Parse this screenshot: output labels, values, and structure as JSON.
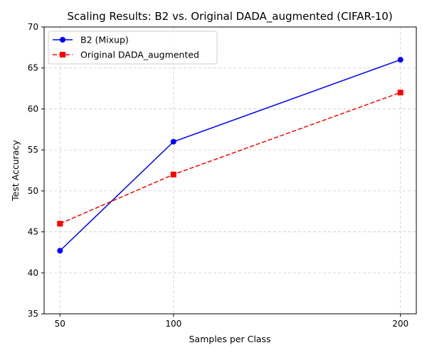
{
  "chart_data": {
    "type": "line",
    "title": "Scaling Results: B2 vs. Original DADA_augmented (CIFAR-10)",
    "xlabel": "Samples per Class",
    "ylabel": "Test Accuracy",
    "x": [
      50,
      100,
      200
    ],
    "xticks": [
      "50",
      "100",
      "200"
    ],
    "xlim": [
      43,
      207
    ],
    "ylim": [
      35,
      70
    ],
    "yticks": [
      "35",
      "40",
      "45",
      "50",
      "55",
      "60",
      "65",
      "70"
    ],
    "grid": true,
    "legend_position": "top-left",
    "series": [
      {
        "name": "B2 (Mixup)",
        "values": [
          42.7,
          56.0,
          66.0
        ],
        "color": "#0000ff",
        "marker": "circle",
        "linestyle": "solid"
      },
      {
        "name": "Original DADA_augmented",
        "values": [
          46.0,
          52.0,
          62.0
        ],
        "color": "#ff0000",
        "marker": "square",
        "linestyle": "dashed"
      }
    ]
  }
}
